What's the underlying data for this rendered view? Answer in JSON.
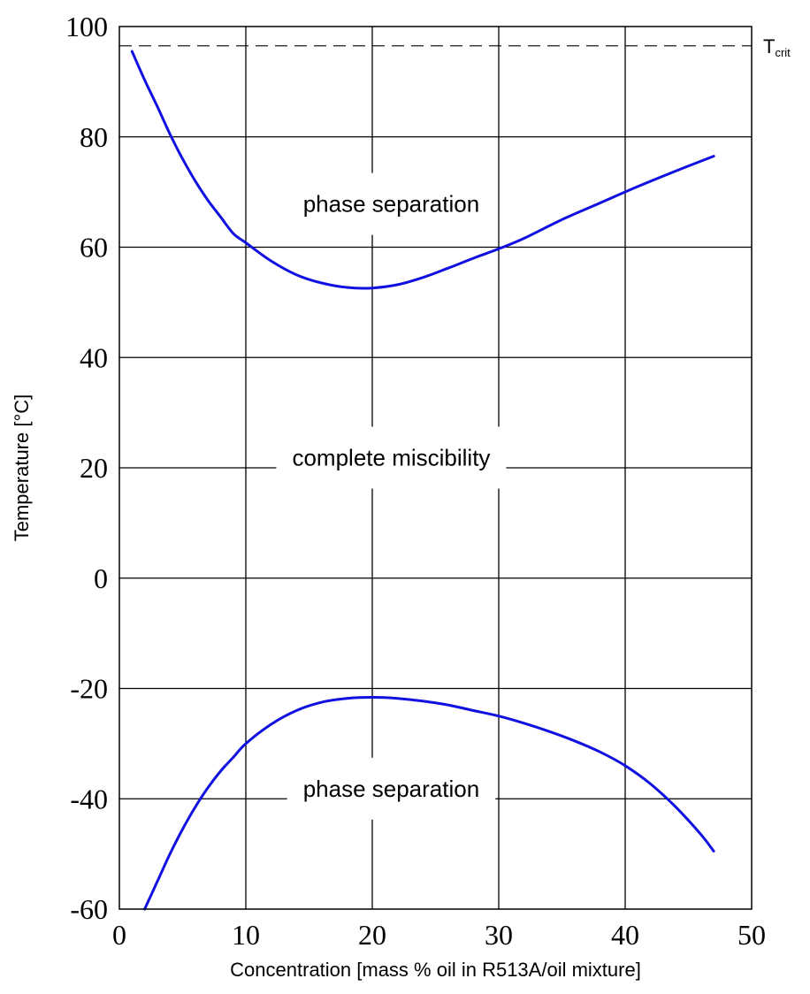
{
  "chart_data": {
    "type": "line",
    "title": "",
    "xlabel": "Concentration [mass % oil in R513A/oil mixture]",
    "ylabel": "Temperature [°C]",
    "xlim": [
      0,
      50
    ],
    "ylim": [
      -60,
      100
    ],
    "x_ticks": [
      "0",
      "10",
      "20",
      "30",
      "40",
      "50"
    ],
    "y_ticks": [
      "100",
      "80",
      "60",
      "40",
      "20",
      "0",
      "-20",
      "-40",
      "-60"
    ],
    "grid": true,
    "series_color": "#1010e0",
    "series": [
      {
        "x": [
          1,
          2,
          3,
          4,
          5,
          6,
          7,
          8,
          9,
          10,
          12,
          14,
          16,
          18,
          20,
          22,
          24,
          26,
          28,
          30,
          32,
          35,
          38,
          41,
          44,
          47
        ],
        "y": [
          95.5,
          90.3,
          85.5,
          80.5,
          76,
          72,
          68.5,
          65.5,
          62.5,
          60.8,
          57.5,
          55,
          53.5,
          52.7,
          52.6,
          53.2,
          54.5,
          56.2,
          58,
          59.7,
          61.6,
          65,
          68,
          71,
          73.8,
          76.5
        ]
      },
      {
        "x": [
          2,
          3,
          4,
          5,
          6,
          7,
          8,
          9,
          10,
          12,
          14,
          16,
          18,
          20,
          22,
          24,
          26,
          28,
          30,
          32,
          34,
          36,
          38,
          40,
          42,
          44,
          46,
          47
        ],
        "y": [
          -60,
          -55,
          -50,
          -45.5,
          -41.5,
          -38,
          -35,
          -32.5,
          -30,
          -26.5,
          -24,
          -22.5,
          -21.8,
          -21.6,
          -21.8,
          -22.3,
          -23,
          -24,
          -25,
          -26.3,
          -27.8,
          -29.5,
          -31.5,
          -34,
          -37.3,
          -41.5,
          -46.5,
          -49.5
        ]
      }
    ],
    "reference_lines": [
      {
        "label": "T",
        "label_sub": "crit",
        "y": 96.5,
        "style": "dashed"
      }
    ],
    "annotations": [
      {
        "text": "phase separation",
        "x": 21.5,
        "y": 67.5
      },
      {
        "text": "complete miscibility",
        "x": 21.5,
        "y": 21.5
      },
      {
        "text": "phase separation",
        "x": 21.5,
        "y": -38.5
      }
    ]
  }
}
